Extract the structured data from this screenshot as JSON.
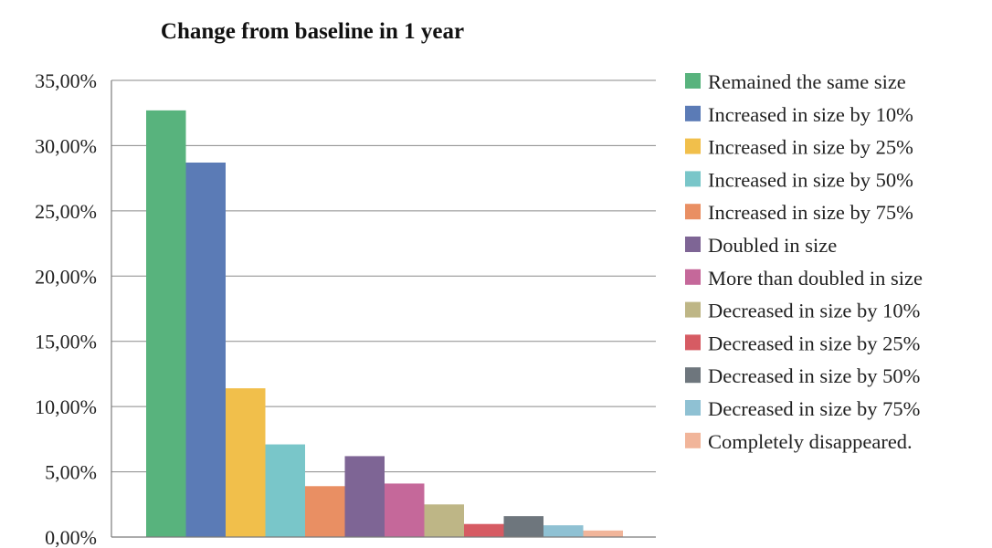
{
  "chart_data": {
    "type": "bar",
    "title": "Change from baseline in 1 year",
    "xlabel": "",
    "ylabel": "",
    "ylim": [
      0,
      35
    ],
    "yticks": [
      0,
      5,
      10,
      15,
      20,
      25,
      30,
      35
    ],
    "ytick_labels": [
      "0,00%",
      "5,00%",
      "10,00%",
      "15,00%",
      "20,00%",
      "25,00%",
      "30,00%",
      "35,00%"
    ],
    "grid": true,
    "legend_position": "right",
    "categories": [
      "Remained the same size",
      "Increased in size by 10%",
      "Increased in size by 25%",
      "Increased in size by 50%",
      "Increased in size by 75%",
      "Doubled in size",
      "More than doubled in size",
      "Decreased in size by 10%",
      "Decreased in size by 25%",
      "Decreased in size by 50%",
      "Decreased in size by 75%",
      "Completely disappeared."
    ],
    "values": [
      32.7,
      28.7,
      11.4,
      7.1,
      3.9,
      6.2,
      4.1,
      2.5,
      1.0,
      1.6,
      0.9,
      0.5
    ],
    "colors": [
      "#58b37d",
      "#5b7bb6",
      "#f1bf4b",
      "#79c6c9",
      "#e98f63",
      "#7e6595",
      "#c5689a",
      "#beb686",
      "#d65b63",
      "#6e767d",
      "#8fc1d3",
      "#f1b59a"
    ]
  }
}
